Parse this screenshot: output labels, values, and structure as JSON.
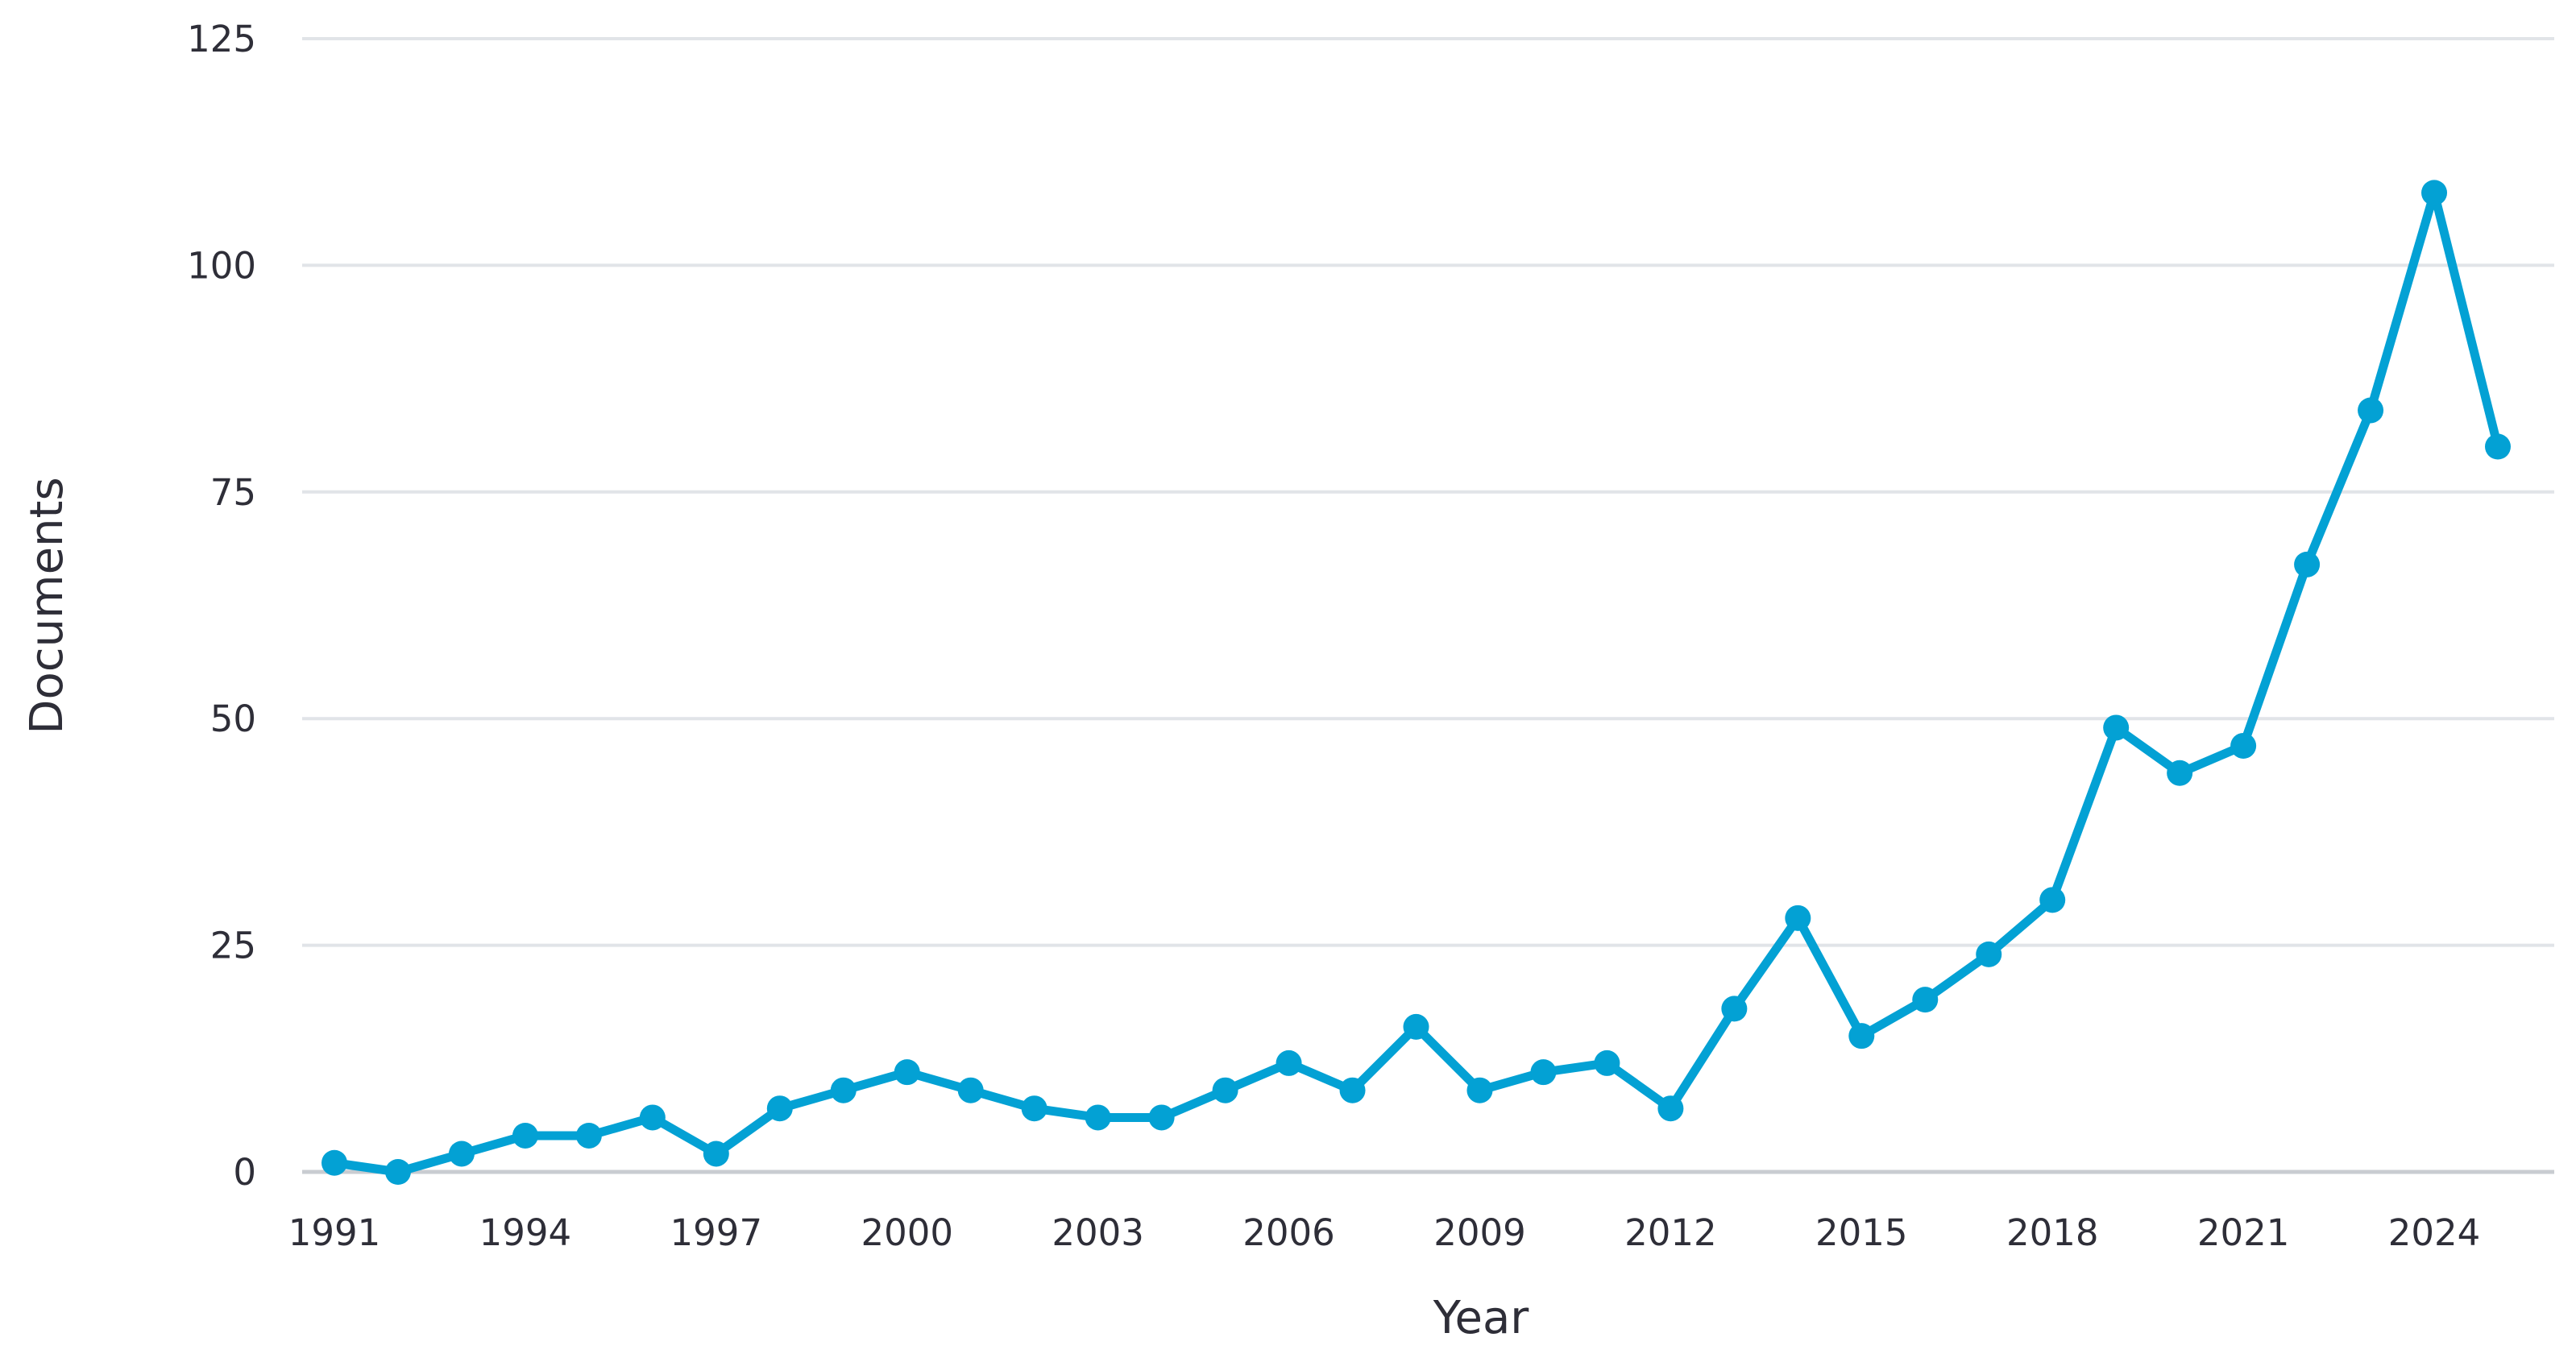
{
  "colors": {
    "series": "#03a1d4",
    "grid": "#e1e4e8",
    "text": "#2e2e38"
  },
  "chart_data": {
    "type": "line",
    "title": "",
    "xlabel": "Year",
    "ylabel": "Documents",
    "xlim": [
      1991,
      2025
    ],
    "ylim": [
      0,
      125
    ],
    "yticks": [
      0,
      25,
      50,
      75,
      100,
      125
    ],
    "xticks": [
      1991,
      1994,
      1997,
      2000,
      2003,
      2006,
      2009,
      2012,
      2015,
      2018,
      2021,
      2024
    ],
    "grid": "horizontal",
    "legend": "none",
    "series": [
      {
        "x": [
          1991,
          1992,
          1993,
          1994,
          1995,
          1996,
          1997,
          1998,
          1999,
          2000,
          2001,
          2002,
          2003,
          2004,
          2005,
          2006,
          2007,
          2008,
          2009,
          2010,
          2011,
          2012,
          2013,
          2014,
          2015,
          2016,
          2017,
          2018,
          2019,
          2020,
          2021,
          2022,
          2023,
          2024,
          2025
        ],
        "values": [
          1,
          0,
          2,
          4,
          4,
          6,
          2,
          7,
          9,
          11,
          9,
          7,
          6,
          6,
          9,
          12,
          9,
          16,
          9,
          11,
          12,
          7,
          18,
          28,
          15,
          19,
          24,
          30,
          49,
          44,
          47,
          67,
          84,
          108,
          80
        ]
      }
    ]
  }
}
